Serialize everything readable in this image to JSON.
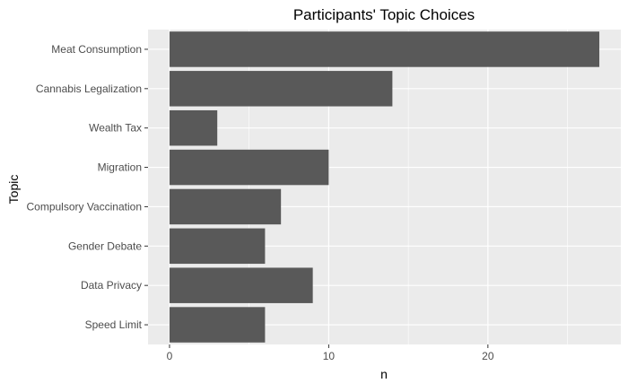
{
  "chart_data": {
    "type": "bar",
    "orientation": "horizontal",
    "title": "Participants' Topic Choices",
    "xlabel": "n",
    "ylabel": "Topic",
    "categories": [
      "Meat Consumption",
      "Cannabis Legalization",
      "Wealth Tax",
      "Migration",
      "Compulsory Vaccination",
      "Gender Debate",
      "Data Privacy",
      "Speed Limit"
    ],
    "values": [
      27,
      14,
      3,
      10,
      7,
      6,
      9,
      6
    ],
    "xlim": [
      -1.35,
      28.35
    ],
    "x_ticks": [
      0,
      10,
      20
    ],
    "x_tick_labels": [
      "0",
      "10",
      "20"
    ],
    "grid": true,
    "legend": "none",
    "colors": {
      "bar": "#595959",
      "panel_background": "#EBEBEB",
      "grid": "#FFFFFF",
      "text": "#4D4D4D",
      "title": "#000000",
      "page_background": "#FFFFFF"
    }
  }
}
